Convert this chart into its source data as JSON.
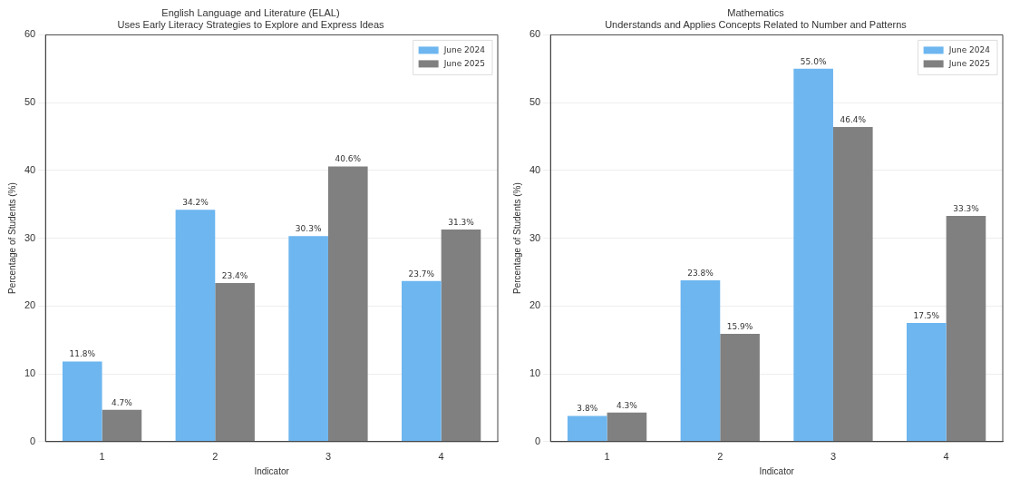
{
  "chart_data": [
    {
      "type": "bar",
      "title": "English Language and Literature (ELAL)",
      "subtitle": "Uses Early Literacy Strategies to Explore and Express Ideas",
      "xlabel": "Indicator",
      "ylabel": "Percentage of Students (%)",
      "categories": [
        "1",
        "2",
        "3",
        "4"
      ],
      "series": [
        {
          "name": "June 2024",
          "color": "#6db6f0",
          "values": [
            11.8,
            34.2,
            30.3,
            23.7
          ],
          "value_labels": [
            "11.8%",
            "34.2%",
            "30.3%",
            "23.7%"
          ]
        },
        {
          "name": "June 2025",
          "color": "#808080",
          "values": [
            4.7,
            23.4,
            40.6,
            31.3
          ],
          "value_labels": [
            "4.7%",
            "23.4%",
            "40.6%",
            "31.3%"
          ]
        }
      ],
      "ylim": [
        0,
        60
      ],
      "yticks": [
        0,
        10,
        20,
        30,
        40,
        50,
        60
      ],
      "grid": "y",
      "legend": "top right"
    },
    {
      "type": "bar",
      "title": "Mathematics",
      "subtitle": "Understands and Applies Concepts Related to Number and Patterns",
      "xlabel": "Indicator",
      "ylabel": "Percentage of Students (%)",
      "categories": [
        "1",
        "2",
        "3",
        "4"
      ],
      "series": [
        {
          "name": "June 2024",
          "color": "#6db6f0",
          "values": [
            3.8,
            23.8,
            55.0,
            17.5
          ],
          "value_labels": [
            "3.8%",
            "23.8%",
            "55.0%",
            "17.5%"
          ]
        },
        {
          "name": "June 2025",
          "color": "#808080",
          "values": [
            4.3,
            15.9,
            46.4,
            33.3
          ],
          "value_labels": [
            "4.3%",
            "15.9%",
            "46.4%",
            "33.3%"
          ]
        }
      ],
      "ylim": [
        0,
        60
      ],
      "yticks": [
        0,
        10,
        20,
        30,
        40,
        50,
        60
      ],
      "grid": "y",
      "legend": "top right"
    }
  ]
}
